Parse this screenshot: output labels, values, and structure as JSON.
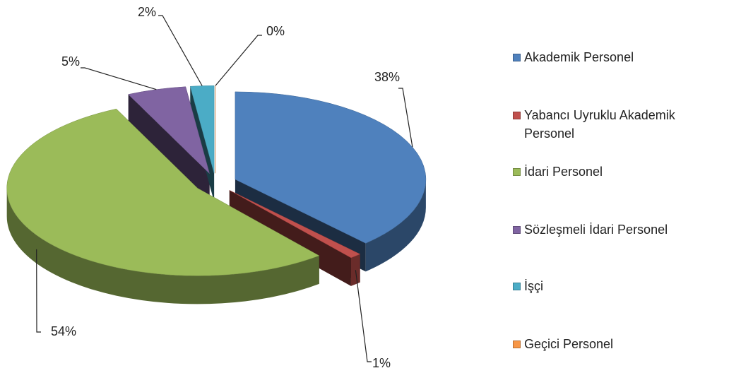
{
  "chart_data": {
    "type": "pie3d",
    "categories": [
      "Akademik Personel",
      "Yabancı Uyruklu Akademik Personel",
      "İdari Personel",
      "Sözleşmeli İdari Personel",
      "İşçi",
      "Geçici Personel"
    ],
    "values": [
      38,
      1,
      54,
      5,
      2,
      0
    ],
    "value_labels": [
      "38%",
      "1%",
      "54%",
      "5%",
      "2%",
      "0%"
    ],
    "colors": [
      "#4f81bd",
      "#c0504d",
      "#9bbb59",
      "#8064a2",
      "#4bacc6",
      "#f79646"
    ],
    "legend": "right"
  }
}
